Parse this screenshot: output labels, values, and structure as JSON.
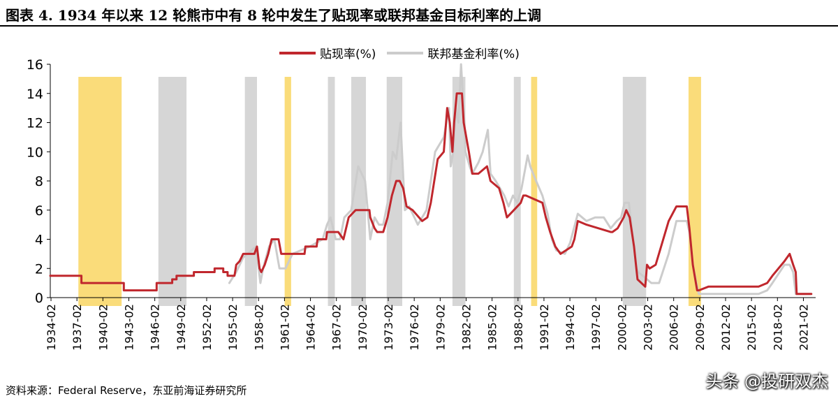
{
  "title": "图表 4.   1934 年以来 12 轮熊市中有 8 轮中发生了贴现率或联邦基金目标利率的上调",
  "source": "资料来源：Federal Reserve，东亚前海证券研究所",
  "watermark": "头条 @投研双杰",
  "chart_data": {
    "type": "line",
    "title": "图表 4.   1934 年以来 12 轮熊市中有 8 轮中发生了贴现率或联邦基金目标利率的上调",
    "xlabel": "",
    "ylabel": "",
    "xlim": [
      1934.0,
      2022.5
    ],
    "ylim": [
      0,
      16
    ],
    "yticks": [
      0,
      2,
      4,
      6,
      8,
      10,
      12,
      14,
      16
    ],
    "xticks": [
      "1934-02",
      "1937-02",
      "1940-02",
      "1943-02",
      "1946-02",
      "1949-02",
      "1952-02",
      "1955-02",
      "1958-02",
      "1961-02",
      "1964-02",
      "1967-02",
      "1970-02",
      "1973-02",
      "1976-02",
      "1979-02",
      "1982-02",
      "1985-02",
      "1988-02",
      "1991-02",
      "1994-02",
      "1997-02",
      "2000-02",
      "2003-02",
      "2006-02",
      "2009-02",
      "2012-02",
      "2015-02",
      "2018-02",
      "2021-02"
    ],
    "grid": false,
    "legend_position": "top-center",
    "series": [
      {
        "name": "贴现率(%)",
        "color": "#c0272d",
        "x": [
          1934.0,
          1937.6,
          1937.6,
          1942.5,
          1942.5,
          1946.3,
          1946.3,
          1948.1,
          1948.1,
          1948.6,
          1948.6,
          1950.6,
          1950.6,
          1953.0,
          1953.0,
          1954.0,
          1954.0,
          1954.5,
          1954.5,
          1955.3,
          1955.5,
          1955.9,
          1956.3,
          1957.6,
          1957.9,
          1958.2,
          1958.4,
          1958.8,
          1959.2,
          1959.6,
          1960.4,
          1960.7,
          1963.4,
          1963.5,
          1964.8,
          1964.9,
          1965.9,
          1966.0,
          1967.3,
          1967.9,
          1968.3,
          1968.5,
          1969.3,
          1970.9,
          1971.0,
          1971.5,
          1971.8,
          1972.5,
          1973.0,
          1973.5,
          1974.0,
          1974.4,
          1974.8,
          1975.2,
          1975.9,
          1977.0,
          1977.6,
          1978.0,
          1978.8,
          1979.5,
          1979.9,
          1980.2,
          1980.5,
          1980.7,
          1981.0,
          1981.6,
          1981.8,
          1982.4,
          1982.8,
          1983.5,
          1984.5,
          1984.9,
          1985.9,
          1986.4,
          1986.8,
          1987.6,
          1988.4,
          1988.7,
          1989.0,
          1990.9,
          1991.3,
          1991.8,
          1992.4,
          1993.0,
          1994.3,
          1994.6,
          1995.0,
          1996.0,
          1998.8,
          1999.0,
          1999.6,
          2000.3,
          2000.6,
          2001.0,
          2001.5,
          2001.9,
          2002.8,
          2003.0,
          2003.3,
          2004.0,
          2004.5,
          2005.5,
          2006.4,
          2007.6,
          2007.9,
          2008.3,
          2008.8,
          2009.0,
          2010.1,
          2015.9,
          2016.9,
          2017.5,
          2018.9,
          2019.5,
          2019.9,
          2020.2,
          2020.3,
          2022.0
        ],
        "values": [
          1.5,
          1.5,
          1.0,
          1.0,
          0.5,
          0.5,
          1.0,
          1.0,
          1.25,
          1.25,
          1.5,
          1.5,
          1.75,
          1.75,
          2.0,
          2.0,
          1.75,
          1.75,
          1.5,
          1.5,
          2.25,
          2.5,
          3.0,
          3.0,
          3.5,
          2.0,
          1.75,
          2.25,
          3.0,
          4.0,
          4.0,
          3.0,
          3.0,
          3.5,
          3.5,
          4.0,
          4.0,
          4.5,
          4.5,
          4.0,
          5.0,
          5.5,
          6.0,
          6.0,
          5.5,
          4.75,
          4.5,
          4.5,
          5.5,
          7.0,
          8.0,
          8.0,
          7.5,
          6.25,
          6.0,
          5.25,
          5.5,
          6.5,
          9.5,
          10.0,
          13.0,
          12.0,
          10.0,
          12.0,
          14.0,
          14.0,
          12.0,
          10.0,
          8.5,
          8.5,
          9.0,
          8.0,
          7.5,
          6.5,
          5.5,
          6.0,
          6.5,
          7.0,
          7.0,
          6.5,
          5.5,
          4.5,
          3.5,
          3.0,
          3.5,
          4.0,
          5.25,
          5.0,
          4.5,
          4.5,
          4.75,
          5.5,
          6.0,
          5.5,
          3.5,
          1.25,
          0.75,
          2.25,
          2.0,
          2.25,
          3.25,
          5.25,
          6.25,
          6.25,
          4.75,
          2.25,
          0.5,
          0.5,
          0.75,
          0.75,
          1.0,
          1.5,
          2.5,
          3.0,
          2.25,
          1.75,
          0.25,
          0.25
        ]
      },
      {
        "name": "联邦基金利率(%)",
        "color": "#cccccc",
        "x": [
          1954.7,
          1955.5,
          1956.3,
          1957.8,
          1958.3,
          1958.6,
          1959.3,
          1959.9,
          1960.5,
          1961.2,
          1962.0,
          1963.0,
          1964.0,
          1965.5,
          1966.0,
          1966.4,
          1967.0,
          1967.5,
          1968.0,
          1968.8,
          1969.6,
          1970.4,
          1971.0,
          1971.5,
          1972.0,
          1972.5,
          1973.0,
          1973.6,
          1974.0,
          1974.5,
          1975.0,
          1975.5,
          1976.5,
          1977.5,
          1978.5,
          1979.5,
          1980.1,
          1980.3,
          1980.6,
          1980.9,
          1981.2,
          1981.5,
          1981.9,
          1982.0,
          1982.5,
          1982.8,
          1983.5,
          1984.0,
          1984.6,
          1984.9,
          1985.5,
          1986.5,
          1987.0,
          1987.5,
          1988.0,
          1988.5,
          1989.2,
          1989.5,
          1990.0,
          1990.9,
          1991.5,
          1992.0,
          1992.5,
          1993.5,
          1994.1,
          1995.0,
          1995.5,
          1996.0,
          1997.0,
          1998.0,
          1998.8,
          1999.5,
          2000.0,
          2000.4,
          2000.9,
          2001.1,
          2001.8,
          2002.0,
          2003.0,
          2003.5,
          2004.4,
          2005.5,
          2006.4,
          2007.6,
          2007.9,
          2008.3,
          2008.7,
          2009.0,
          2015.9,
          2016.9,
          2017.5,
          2018.9,
          2019.5,
          2019.9,
          2020.2,
          2020.3,
          2022.0
        ],
        "values": [
          1.0,
          1.75,
          2.75,
          3.5,
          1.0,
          2.0,
          3.5,
          4.0,
          2.0,
          2.0,
          3.0,
          3.25,
          3.5,
          4.0,
          5.0,
          5.5,
          4.0,
          4.0,
          5.5,
          6.0,
          9.0,
          8.0,
          4.0,
          5.5,
          5.0,
          5.0,
          6.5,
          10.0,
          9.5,
          12.0,
          6.0,
          6.25,
          5.0,
          6.0,
          10.0,
          11.0,
          13.0,
          9.0,
          10.0,
          13.0,
          12.0,
          16.0,
          12.0,
          10.0,
          9.0,
          8.5,
          9.25,
          10.0,
          11.5,
          8.5,
          8.0,
          7.0,
          6.25,
          7.0,
          6.5,
          7.5,
          9.75,
          9.0,
          8.25,
          7.0,
          5.75,
          4.0,
          3.25,
          3.0,
          3.75,
          5.75,
          5.5,
          5.25,
          5.5,
          5.5,
          4.75,
          5.25,
          5.5,
          6.5,
          6.5,
          5.5,
          2.0,
          1.75,
          1.25,
          1.0,
          1.0,
          3.0,
          5.25,
          5.25,
          4.5,
          2.25,
          1.0,
          0.25,
          0.25,
          0.5,
          1.0,
          2.25,
          2.25,
          1.75,
          0.25,
          0.25,
          0.25
        ]
      }
    ],
    "bands": [
      {
        "color": "#fadc7a",
        "from": 1937.25,
        "to": 1942.25
      },
      {
        "color": "#d6d6d6",
        "from": 1946.5,
        "to": 1949.75
      },
      {
        "color": "#d6d6d6",
        "from": 1956.5,
        "to": 1957.9
      },
      {
        "color": "#fadc7a",
        "from": 1961.1,
        "to": 1961.85
      },
      {
        "color": "#d6d6d6",
        "from": 1966.1,
        "to": 1966.9
      },
      {
        "color": "#d6d6d6",
        "from": 1968.8,
        "to": 1970.5
      },
      {
        "color": "#d6d6d6",
        "from": 1972.9,
        "to": 1974.7
      },
      {
        "color": "#d6d6d6",
        "from": 1980.5,
        "to": 1982.0
      },
      {
        "color": "#d6d6d6",
        "from": 1987.6,
        "to": 1988.4
      },
      {
        "color": "#fadc7a",
        "from": 1989.6,
        "to": 1990.3
      },
      {
        "color": "#d6d6d6",
        "from": 2000.2,
        "to": 2002.9
      },
      {
        "color": "#fadc7a",
        "from": 2007.8,
        "to": 2009.25
      }
    ]
  }
}
